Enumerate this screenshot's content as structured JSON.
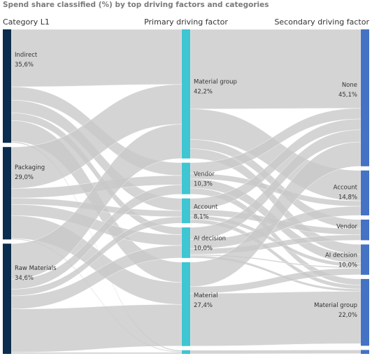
{
  "chart_data": {
    "type": "sankey",
    "title": "Spend share classified (%) by top driving factors and categories",
    "columns": [
      "Category L1",
      "Primary driving factor",
      "Secondary driving factor"
    ],
    "units": "% of spend",
    "nodes": [
      {
        "id": "indirect",
        "column": 0,
        "name": "Indirect",
        "label": "35,6%",
        "value": 35.6
      },
      {
        "id": "packaging",
        "column": 0,
        "name": "Packaging",
        "label": "29,0%",
        "value": 29.0
      },
      {
        "id": "raw",
        "column": 0,
        "name": "Raw Materials",
        "label": "34,6%",
        "value": 34.6
      },
      {
        "id": "p_mg",
        "column": 1,
        "name": "Material group",
        "label": "42,2%",
        "value": 42.2
      },
      {
        "id": "p_vendor",
        "column": 1,
        "name": "Vendor",
        "label": "10,3%",
        "value": 10.3
      },
      {
        "id": "p_account",
        "column": 1,
        "name": "Account",
        "label": "8,1%",
        "value": 8.1
      },
      {
        "id": "p_ai",
        "column": 1,
        "name": "AI decision",
        "label": "10,0%",
        "value": 10.0
      },
      {
        "id": "p_mat",
        "column": 1,
        "name": "Material",
        "label": "27,4%",
        "value": 27.4
      },
      {
        "id": "p_other",
        "column": 1,
        "name": "",
        "label": "",
        "value": 1.2
      },
      {
        "id": "s_none",
        "column": 2,
        "name": "None",
        "label": "45,1%",
        "value": 45.1
      },
      {
        "id": "s_account",
        "column": 2,
        "name": "Account",
        "label": "14,8%",
        "value": 14.8
      },
      {
        "id": "s_vendor",
        "column": 2,
        "name": "Vendor",
        "label": "",
        "value": 6.8
      },
      {
        "id": "s_ai",
        "column": 2,
        "name": "AI decision",
        "label": "10,0%",
        "value": 10.0
      },
      {
        "id": "s_mg",
        "column": 2,
        "name": "Material group",
        "label": "22,0%",
        "value": 22.0
      },
      {
        "id": "s_other",
        "column": 2,
        "name": "",
        "label": "",
        "value": 1.3
      }
    ],
    "links": [
      {
        "source": "indirect",
        "target": "p_mg",
        "value": 18.0
      },
      {
        "source": "indirect",
        "target": "p_vendor",
        "value": 4.2
      },
      {
        "source": "indirect",
        "target": "p_account",
        "value": 4.0
      },
      {
        "source": "indirect",
        "target": "p_ai",
        "value": 2.4
      },
      {
        "source": "indirect",
        "target": "p_mat",
        "value": 6.6
      },
      {
        "source": "indirect",
        "target": "p_other",
        "value": 0.4
      },
      {
        "source": "packaging",
        "target": "p_mg",
        "value": 13.0
      },
      {
        "source": "packaging",
        "target": "p_vendor",
        "value": 3.0
      },
      {
        "source": "packaging",
        "target": "p_account",
        "value": 2.0
      },
      {
        "source": "packaging",
        "target": "p_ai",
        "value": 3.5
      },
      {
        "source": "packaging",
        "target": "p_mat",
        "value": 7.2
      },
      {
        "source": "packaging",
        "target": "p_other",
        "value": 0.3
      },
      {
        "source": "raw",
        "target": "p_mg",
        "value": 11.2
      },
      {
        "source": "raw",
        "target": "p_vendor",
        "value": 3.1
      },
      {
        "source": "raw",
        "target": "p_account",
        "value": 2.1
      },
      {
        "source": "raw",
        "target": "p_ai",
        "value": 4.1
      },
      {
        "source": "raw",
        "target": "p_mat",
        "value": 13.6
      },
      {
        "source": "raw",
        "target": "p_other",
        "value": 0.5
      },
      {
        "source": "p_mg",
        "target": "s_none",
        "value": 26.0
      },
      {
        "source": "p_mg",
        "target": "s_account",
        "value": 10.0
      },
      {
        "source": "p_mg",
        "target": "s_vendor",
        "value": 3.0
      },
      {
        "source": "p_mg",
        "target": "s_ai",
        "value": 3.2
      },
      {
        "source": "p_vendor",
        "target": "s_none",
        "value": 3.5
      },
      {
        "source": "p_vendor",
        "target": "s_account",
        "value": 1.8
      },
      {
        "source": "p_vendor",
        "target": "s_ai",
        "value": 3.0
      },
      {
        "source": "p_vendor",
        "target": "s_mg",
        "value": 2.0
      },
      {
        "source": "p_account",
        "target": "s_none",
        "value": 3.6
      },
      {
        "source": "p_account",
        "target": "s_vendor",
        "value": 2.0
      },
      {
        "source": "p_account",
        "target": "s_ai",
        "value": 1.2
      },
      {
        "source": "p_account",
        "target": "s_mg",
        "value": 1.3
      },
      {
        "source": "p_ai",
        "target": "s_none",
        "value": 4.0
      },
      {
        "source": "p_ai",
        "target": "s_account",
        "value": 3.0
      },
      {
        "source": "p_ai",
        "target": "s_vendor",
        "value": 1.8
      },
      {
        "source": "p_ai",
        "target": "s_ai",
        "value": 0.4
      },
      {
        "source": "p_ai",
        "target": "s_mg",
        "value": 0.8
      },
      {
        "source": "p_mat",
        "target": "s_none",
        "value": 8.0
      },
      {
        "source": "p_mat",
        "target": "s_ai",
        "value": 2.2
      },
      {
        "source": "p_mat",
        "target": "s_mg",
        "value": 17.2
      },
      {
        "source": "p_other",
        "target": "s_other",
        "value": 1.2
      }
    ],
    "colors": {
      "column0": "#0b2d4e",
      "column1": "#3ec6d3",
      "column2": "#4472c4",
      "link": "#c8c8c8",
      "title": "#7a7a7a",
      "text": "#333333"
    }
  }
}
